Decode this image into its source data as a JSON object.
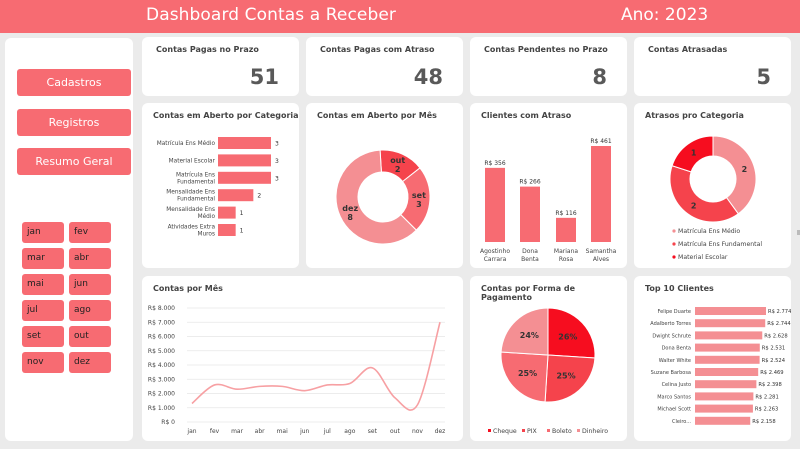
{
  "header": {
    "title": "Dashboard Contas a Receber",
    "year": "Ano: 2023"
  },
  "nav": {
    "cadastros": "Cadastros",
    "registros": "Registros",
    "resumo": "Resumo Geral"
  },
  "months": [
    "jan",
    "fev",
    "mar",
    "abr",
    "mai",
    "jun",
    "jul",
    "ago",
    "set",
    "out",
    "nov",
    "dez"
  ],
  "kpis": [
    {
      "label": "Contas Pagas no Prazo",
      "value": "51"
    },
    {
      "label": "Contas Pagas com Atraso",
      "value": "48"
    },
    {
      "label": "Contas Pendentes no Prazo",
      "value": "8"
    },
    {
      "label": "Contas Atrasadas",
      "value": "5"
    }
  ],
  "titles": {
    "categoria": "Contas em Aberto por Categoria",
    "mes": "Contas em Aberto por Mês",
    "clientes": "Clientes com Atraso",
    "atrasos": "Atrasos pro Categoria",
    "linha": "Contas por Mês",
    "pagamento": "Contas por Forma de Pagamento",
    "top10": "Top 10 Clientes"
  },
  "colors": {
    "accent": "#f76b72",
    "pink": "#f48f93",
    "red": "#f5434c",
    "bright": "#f60d1f",
    "line": "#f7a0a3"
  },
  "chart_data": [
    {
      "type": "bar",
      "orientation": "horizontal",
      "title": "Contas em Aberto por Categoria",
      "categories": [
        "Matrícula Ens Médio",
        "Material Escolar",
        "Matrícula Ens Fundamental",
        "Mensalidade Ens Fundamental",
        "Mensalidade Ens Médio",
        "Atividades Extra Muros"
      ],
      "display_categories": [
        [
          "Matrícula Ens Médio"
        ],
        [
          "Material Escolar"
        ],
        [
          "Matrícula Ens",
          "Fundamental"
        ],
        [
          "Mensalidade Ens",
          "Fundamental"
        ],
        [
          "Mensalidade Ens",
          "Médio"
        ],
        [
          "Atividades Extra",
          "Muros"
        ]
      ],
      "values": [
        3,
        3,
        3,
        2,
        1,
        1
      ],
      "labels": [
        "3",
        "3",
        "3",
        "2",
        "1",
        "1"
      ]
    },
    {
      "type": "pie",
      "donut": true,
      "title": "Contas em Aberto por Mês",
      "categories": [
        "out",
        "set",
        "dez"
      ],
      "values": [
        2,
        3,
        8
      ]
    },
    {
      "type": "bar",
      "title": "Clientes com Atraso",
      "categories": [
        "Agostinho Carrara",
        "Dona Benta",
        "Mariana Rosa",
        "Samantha Alves"
      ],
      "display_categories": [
        [
          "Agostinho",
          "Carrara"
        ],
        [
          "Dona",
          "Benta"
        ],
        [
          "Mariana",
          "Rosa"
        ],
        [
          "Samantha",
          "Alves"
        ]
      ],
      "values": [
        356,
        266,
        116,
        461
      ],
      "labels": [
        "R$ 356",
        "R$ 266",
        "R$ 116",
        "R$ 461"
      ]
    },
    {
      "type": "pie",
      "donut": true,
      "title": "Atrasos pro Categoria",
      "categories": [
        "Matrícula Ens Médio",
        "Matrícula Ens Fundamental",
        "Material Escolar"
      ],
      "values": [
        2,
        2,
        1
      ],
      "legend": "bottom"
    },
    {
      "type": "line",
      "title": "Contas por Mês",
      "categories": [
        "jan",
        "fev",
        "mar",
        "abr",
        "mai",
        "jun",
        "jul",
        "ago",
        "set",
        "out",
        "nov",
        "dez"
      ],
      "values": [
        1300,
        2600,
        2300,
        2500,
        2500,
        2200,
        2600,
        2700,
        3800,
        1700,
        1200,
        7000
      ],
      "ylim": [
        0,
        8000
      ],
      "yticks": [
        "R$ 0",
        "R$ 1.000",
        "R$ 2.000",
        "R$ 3.000",
        "R$ 4.000",
        "R$ 5.000",
        "R$ 6.000",
        "R$ 7.000",
        "R$ 8.000"
      ]
    },
    {
      "type": "pie",
      "title": "Contas por Forma de Pagamento",
      "categories": [
        "Cheque",
        "PIX",
        "Boleto",
        "Dinheiro"
      ],
      "values": [
        26,
        25,
        25,
        24
      ],
      "labels": [
        "26%",
        "25%",
        "25%",
        "24%"
      ],
      "legend": "bottom"
    },
    {
      "type": "bar",
      "orientation": "horizontal",
      "title": "Top 10 Clientes",
      "categories": [
        "Felipe Duarte",
        "Adalberto Torres",
        "Dwight Schrute",
        "Dona Benta",
        "Walter White",
        "Suzane Barbosa",
        "Celina Justo",
        "Marco Santos",
        "Michael Scott",
        "Cleiro..."
      ],
      "values": [
        2774,
        2744,
        2628,
        2531,
        2524,
        2469,
        2398,
        2281,
        2263,
        2158
      ],
      "labels": [
        "R$ 2.774",
        "R$ 2.744",
        "R$ 2.628",
        "R$ 2.531",
        "R$ 2.524",
        "R$ 2.469",
        "R$ 2.398",
        "R$ 2.281",
        "R$ 2.263",
        "R$ 2.158"
      ]
    }
  ]
}
